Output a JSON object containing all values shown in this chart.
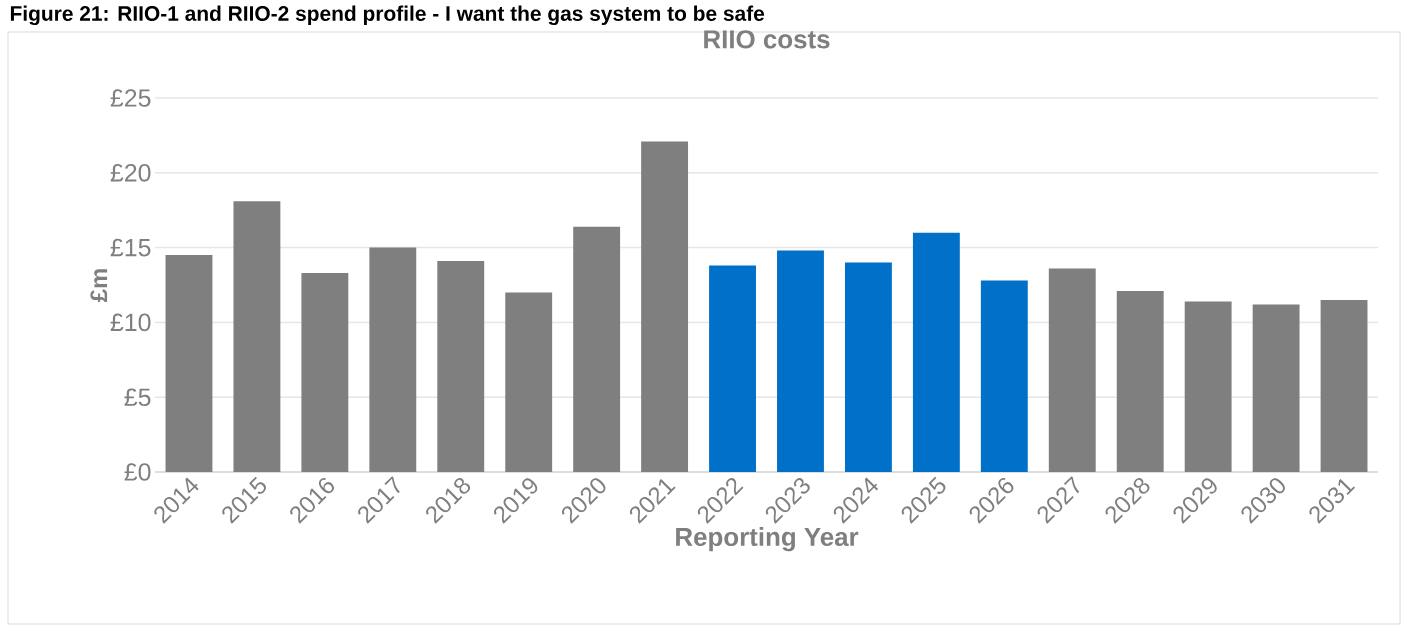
{
  "chart_data": {
    "type": "bar",
    "title": "RIIO costs",
    "annotations": [
      "Figure 21: RIIO-1 and RIIO-2 spend profile - I want the gas system to be safe"
    ],
    "xlabel": "Reporting Year",
    "ylabel": "£m",
    "categories": [
      "2014",
      "2015",
      "2016",
      "2017",
      "2018",
      "2019",
      "2020",
      "2021",
      "2022",
      "2023",
      "2024",
      "2025",
      "2026",
      "2027",
      "2028",
      "2029",
      "2030",
      "2031"
    ],
    "values": [
      14.5,
      18.1,
      13.3,
      15.0,
      14.1,
      12.0,
      16.4,
      22.1,
      13.8,
      14.8,
      14.0,
      16.0,
      12.8,
      13.6,
      12.1,
      11.4,
      11.2,
      11.5
    ],
    "colors": [
      "#7f7f80",
      "#7f7f80",
      "#7f7f80",
      "#7f7f80",
      "#7f7f80",
      "#7f7f80",
      "#7f7f80",
      "#7f7f80",
      "#0070c8",
      "#0070c8",
      "#0070c8",
      "#0070c8",
      "#0070c8",
      "#7f7f80",
      "#7f7f80",
      "#7f7f80",
      "#7f7f80",
      "#7f7f80"
    ],
    "ylim": [
      0,
      25
    ],
    "yticks": [
      {
        "value": 0,
        "label": "£0"
      },
      {
        "value": 5,
        "label": "£5"
      },
      {
        "value": 10,
        "label": "£10"
      },
      {
        "value": 15,
        "label": "£15"
      },
      {
        "value": 20,
        "label": "£20"
      },
      {
        "value": 25,
        "label": "£25"
      }
    ],
    "grid": "y"
  }
}
